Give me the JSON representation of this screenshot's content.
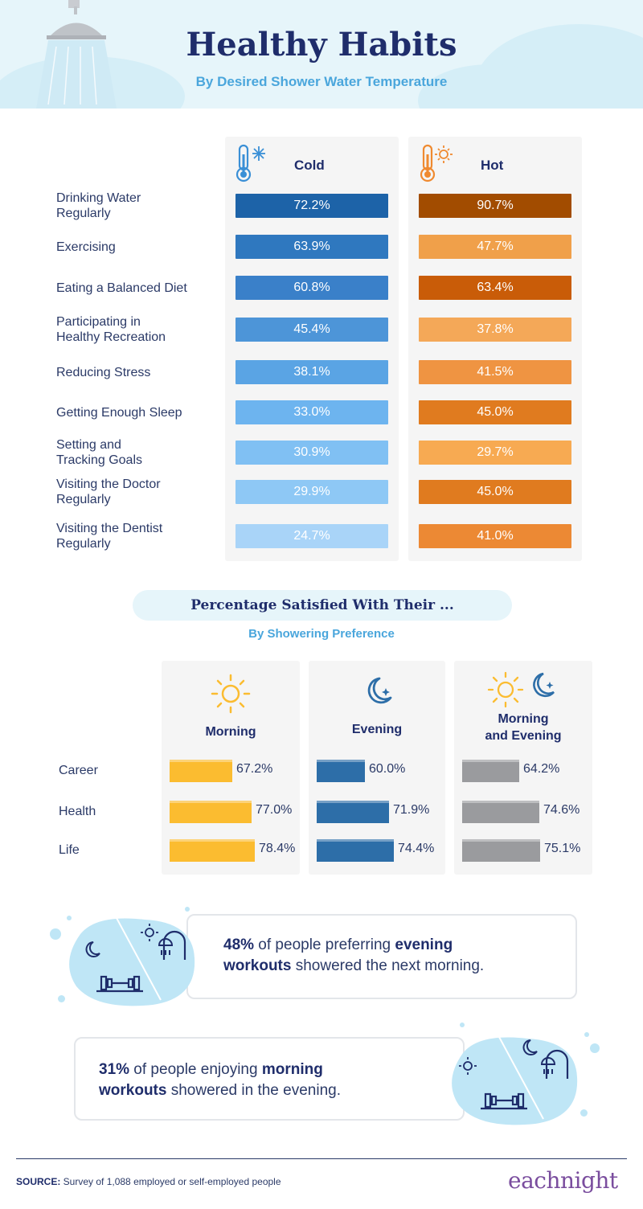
{
  "header": {
    "title": "Healthy Habits",
    "subtitle": "By Desired Shower Water Temperature"
  },
  "chart_data": [
    {
      "type": "bar",
      "title": "Healthy Habits",
      "subtitle": "By Desired Shower Water Temperature",
      "categories": [
        "Drinking Water Regularly",
        "Exercising",
        "Eating a Balanced Diet",
        "Participating in Healthy Recreation",
        "Reducing Stress",
        "Getting Enough Sleep",
        "Setting and Tracking Goals",
        "Visiting the Doctor Regularly",
        "Visiting the Dentist Regularly"
      ],
      "category_lines": [
        [
          "Drinking Water",
          "Regularly"
        ],
        [
          "Exercising"
        ],
        [
          "Eating a Balanced Diet"
        ],
        [
          "Participating in",
          "Healthy Recreation"
        ],
        [
          "Reducing Stress"
        ],
        [
          "Getting Enough Sleep"
        ],
        [
          "Setting and",
          "Tracking Goals"
        ],
        [
          "Visiting the Doctor",
          "Regularly"
        ],
        [
          "Visiting the Dentist",
          "Regularly"
        ]
      ],
      "series": [
        {
          "name": "Cold",
          "values": [
            72.2,
            63.9,
            60.8,
            45.4,
            38.1,
            33.0,
            30.9,
            29.9,
            24.7
          ],
          "labels": [
            "72.2%",
            "63.9%",
            "60.8%",
            "45.4%",
            "38.1%",
            "33.0%",
            "30.9%",
            "29.9%",
            "24.7%"
          ]
        },
        {
          "name": "Hot",
          "values": [
            90.7,
            47.7,
            63.4,
            37.8,
            41.5,
            45.0,
            29.7,
            45.0,
            41.0
          ],
          "labels": [
            "90.7%",
            "47.7%",
            "63.4%",
            "37.8%",
            "41.5%",
            "45.0%",
            "29.7%",
            "45.0%",
            "41.0%"
          ]
        }
      ],
      "colors": {
        "cold_scale": [
          "#1d63a8",
          "#2f78bf",
          "#3a80c9",
          "#4d95d8",
          "#5aa4e4",
          "#6db4ef",
          "#80c0f3",
          "#8ec8f5",
          "#a9d4f8"
        ],
        "hot_scale": [
          "#a24c00",
          "#f0a04a",
          "#c95c08",
          "#f4a858",
          "#ef9442",
          "#e07b1f",
          "#f7aa52",
          "#e07b1f",
          "#ec8934"
        ]
      }
    },
    {
      "type": "bar",
      "title": "Percentage Satisfied With Their ...",
      "subtitle": "By Showering Preference",
      "categories": [
        "Career",
        "Health",
        "Life"
      ],
      "series": [
        {
          "name": "Morning",
          "values": [
            67.2,
            77.0,
            78.4
          ],
          "labels": [
            "67.2%",
            "77.0%",
            "78.4%"
          ],
          "color": "#fbbc30"
        },
        {
          "name": "Evening",
          "values": [
            60.0,
            71.9,
            74.4
          ],
          "labels": [
            "60.0%",
            "71.9%",
            "74.4%"
          ],
          "color": "#2d6ea8"
        },
        {
          "name": "Morning and Evening",
          "name_lines": [
            "Morning",
            "and Evening"
          ],
          "values": [
            64.2,
            74.6,
            75.1
          ],
          "labels": [
            "64.2%",
            "74.6%",
            "75.1%"
          ],
          "color": "#9a9b9e"
        }
      ]
    }
  ],
  "callouts": [
    {
      "stat": "48%",
      "text1": " of people preferring ",
      "bold1": "evening",
      "bold2": "workouts",
      "text2": " showered the next morning."
    },
    {
      "stat": "31%",
      "text1": " of people enjoying ",
      "bold1": "morning",
      "bold2": "workouts",
      "text2": " showered in the evening."
    }
  ],
  "footer": {
    "source_label": "SOURCE:",
    "source_text": " Survey of 1,088 employed or self-employed people",
    "logo": "eachnight"
  }
}
